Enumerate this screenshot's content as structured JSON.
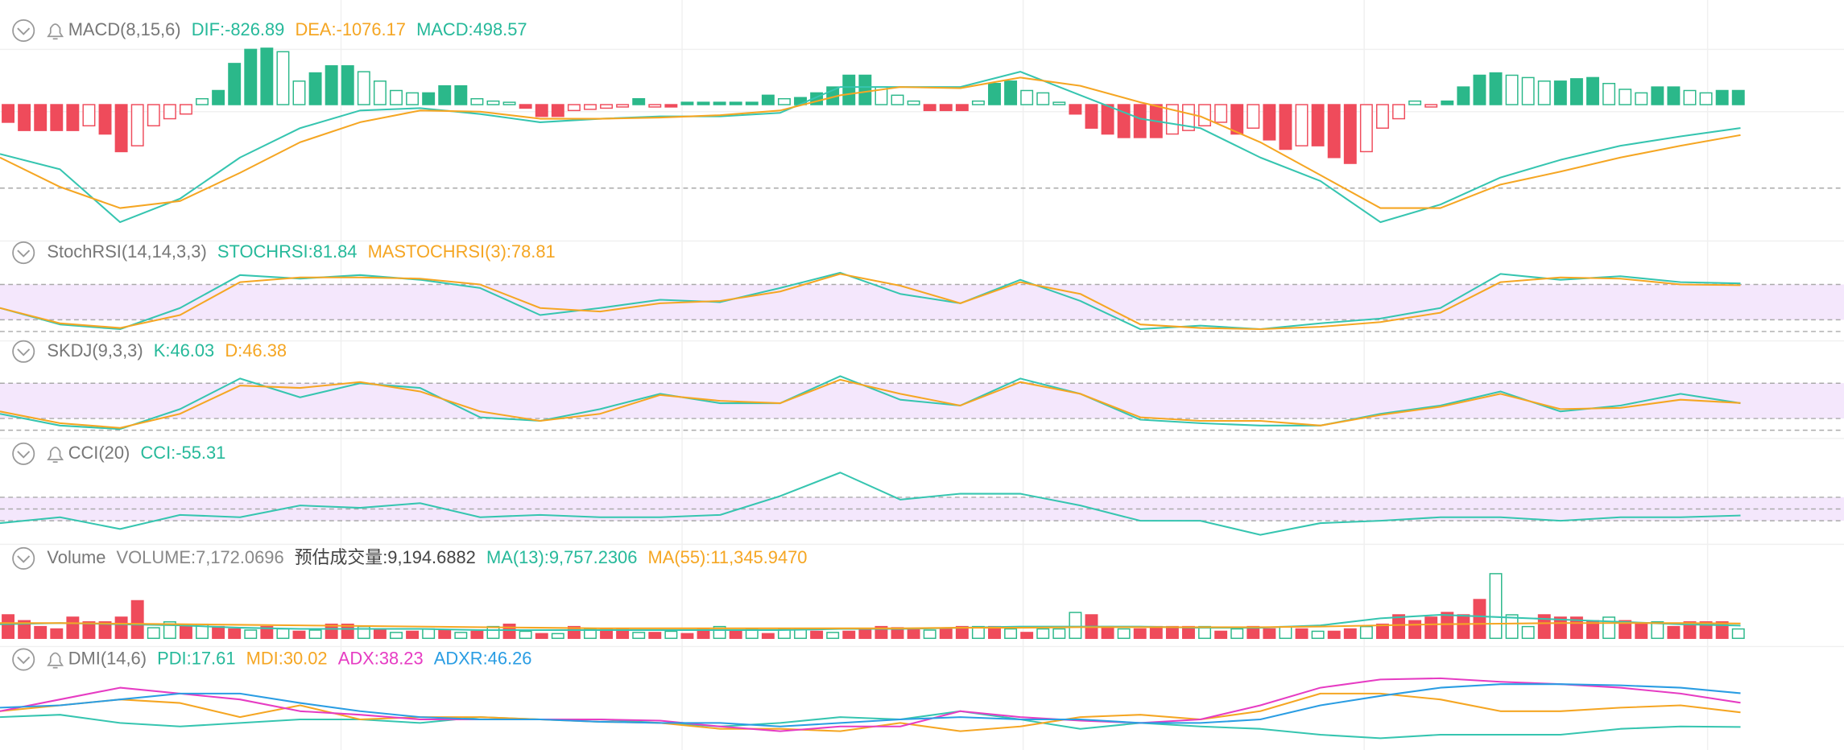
{
  "panels": [
    {
      "title": "MACD(8,15,6)",
      "bell": true,
      "ylim": [
        -4607,
        2034
      ],
      "levels": [
        -2947
      ],
      "legend": [
        {
          "text": "DIF:-826.89",
          "color": "#26b99a"
        },
        {
          "text": "DEA:-1076.17",
          "color": "#f5a623"
        },
        {
          "text": "MACD:498.57",
          "color": "#26b99a"
        }
      ],
      "histogram": {
        "up_color": "#2bb88a",
        "down_color": "#ef4b5b",
        "values": [
          -623,
          -913,
          -913,
          -913,
          -913,
          -747,
          -1038,
          -1660,
          -1453,
          -747,
          -498,
          -332,
          208,
          498,
          1453,
          1951,
          1992,
          1868,
          830,
          1121,
          1370,
          1370,
          1162,
          830,
          498,
          415,
          415,
          664,
          664,
          208,
          125,
          83,
          -125,
          -415,
          -415,
          -208,
          -166,
          -125,
          -83,
          208,
          -83,
          -83,
          83,
          83,
          83,
          83,
          83,
          332,
          208,
          249,
          415,
          623,
          1038,
          1038,
          623,
          332,
          125,
          -208,
          -208,
          -208,
          125,
          747,
          830,
          498,
          415,
          83,
          -332,
          -830,
          -1038,
          -1162,
          -1162,
          -1162,
          -1038,
          -913,
          -747,
          -623,
          -1038,
          -830,
          -1245,
          -1577,
          -1453,
          -1453,
          -1868,
          -2075,
          -1660,
          -830,
          -498,
          125,
          -83,
          125,
          623,
          1038,
          1121,
          1038,
          955,
          830,
          830,
          913,
          955,
          747,
          540,
          415,
          623,
          623,
          498,
          415,
          498,
          498.57
        ]
      },
      "series": [
        {
          "color": "#36c5b0",
          "values": [
            -1743,
            -2283,
            -4150,
            -3320,
            -1868,
            -830,
            -208,
            -125,
            -332,
            -623,
            -498,
            -415,
            -415,
            -291,
            623,
            623,
            623,
            1162,
            332,
            -498,
            -830,
            -1868,
            -2698,
            -4150,
            -3528,
            -2573,
            -1951,
            -1453,
            -1121,
            -826.89
          ]
        },
        {
          "color": "#f5a623",
          "values": [
            -1868,
            -2905,
            -3652,
            -3403,
            -2407,
            -1328,
            -623,
            -208,
            -249,
            -498,
            -498,
            -457,
            -374,
            -208,
            332,
            623,
            581,
            955,
            664,
            83,
            -415,
            -1328,
            -2490,
            -3652,
            -3652,
            -2822,
            -2366,
            -1868,
            -1453,
            -1076.17
          ]
        }
      ]
    },
    {
      "title": "StochRSI(14,14,3,3)",
      "bell": false,
      "ylim": [
        0,
        100
      ],
      "band": [
        20,
        80
      ],
      "levels": [
        0,
        20,
        80
      ],
      "legend": [
        {
          "text": "STOCHRSI:81.84",
          "color": "#26b99a"
        },
        {
          "text": "MASTOCHRSI(3):78.81",
          "color": "#f5a623"
        }
      ],
      "series": [
        {
          "color": "#36c5b0",
          "values": [
            40,
            12,
            4,
            40,
            96,
            90,
            96,
            88,
            74,
            28,
            40,
            54,
            50,
            74,
            100,
            64,
            48,
            88,
            52,
            4,
            10,
            4,
            14,
            22,
            40,
            98,
            88,
            94,
            84,
            81.84
          ]
        },
        {
          "color": "#f5a623",
          "values": [
            40,
            14,
            6,
            28,
            84,
            92,
            92,
            90,
            80,
            40,
            34,
            48,
            52,
            68,
            98,
            78,
            48,
            84,
            64,
            12,
            6,
            4,
            8,
            16,
            32,
            84,
            92,
            90,
            80,
            78.81
          ]
        }
      ]
    },
    {
      "title": "SKDJ(9,3,3)",
      "bell": false,
      "ylim": [
        0,
        100
      ],
      "band": [
        20,
        80
      ],
      "levels": [
        0,
        20,
        80
      ],
      "legend": [
        {
          "text": "K:46.03",
          "color": "#26b99a"
        },
        {
          "text": "D:46.38",
          "color": "#f5a623"
        }
      ],
      "series": [
        {
          "color": "#36c5b0",
          "values": [
            28,
            8,
            2,
            36,
            88,
            56,
            80,
            72,
            22,
            16,
            36,
            62,
            46,
            46,
            92,
            52,
            42,
            88,
            62,
            18,
            12,
            8,
            8,
            28,
            42,
            66,
            32,
            42,
            62,
            46.03
          ]
        },
        {
          "color": "#f5a623",
          "values": [
            32,
            12,
            4,
            28,
            76,
            72,
            82,
            66,
            32,
            16,
            28,
            60,
            50,
            46,
            86,
            62,
            42,
            82,
            62,
            22,
            16,
            16,
            8,
            26,
            40,
            62,
            36,
            38,
            52,
            46.38
          ]
        }
      ]
    },
    {
      "title": "CCI(20)",
      "bell": true,
      "ylim": [
        -270,
        330
      ],
      "band": [
        -100,
        100
      ],
      "levels": [
        -100,
        0,
        100
      ],
      "legend": [
        {
          "text": "CCI:-55.31",
          "color": "#26b99a"
        }
      ],
      "series": [
        {
          "color": "#36c5b0",
          "values": [
            -120,
            -70,
            -170,
            -50,
            -70,
            30,
            10,
            50,
            -70,
            -50,
            -70,
            -70,
            -50,
            110,
            310,
            80,
            130,
            130,
            30,
            -100,
            -100,
            -220,
            -120,
            -100,
            -70,
            -70,
            -100,
            -70,
            -70,
            -55.31
          ]
        }
      ]
    },
    {
      "title": "Volume",
      "bell": false,
      "ylim": [
        0,
        50400
      ],
      "legend": [
        {
          "text": "VOLUME:7,172.0696",
          "color": "#888888"
        },
        {
          "text": "预估成交量:9,194.6882",
          "color": "#444444"
        },
        {
          "text": "MA(13):9,757.2306",
          "color": "#26b99a"
        },
        {
          "text": "MA(55):11,345.9470",
          "color": "#f5a623"
        }
      ],
      "volume": {
        "up_color": "#2bb88a",
        "down_color": "#ef4b5b",
        "values": [
          18000,
          13500,
          9000,
          7200,
          16200,
          12600,
          12600,
          16200,
          28800,
          8100,
          12600,
          9000,
          10800,
          9000,
          7200,
          6300,
          9000,
          7200,
          5400,
          6300,
          10800,
          10800,
          9000,
          7200,
          4500,
          5400,
          7200,
          6300,
          4500,
          5400,
          9000,
          10800,
          5400,
          3600,
          3600,
          9000,
          7200,
          7200,
          7200,
          4500,
          4500,
          5400,
          3600,
          7200,
          9000,
          5400,
          7200,
          3600,
          7200,
          7200,
          5400,
          4500,
          5400,
          7200,
          9000,
          8100,
          7200,
          6300,
          7200,
          9000,
          9000,
          9000,
          7200,
          4500,
          7200,
          7200,
          19800,
          18000,
          9000,
          7200,
          7200,
          9000,
          9000,
          9000,
          9000,
          5400,
          7200,
          9000,
          7200,
          9000,
          7200,
          5400,
          5400,
          7200,
          9000,
          10800,
          18000,
          13500,
          16200,
          19800,
          18000,
          29700,
          49500,
          18000,
          9000,
          18000,
          16200,
          16200,
          13500,
          16200,
          13500,
          10800,
          12600,
          9000,
          12600,
          12600,
          12600,
          7172.0696
        ],
        "up": [
          0,
          0,
          0,
          0,
          0,
          0,
          0,
          0,
          0,
          1,
          1,
          0,
          1,
          0,
          0,
          1,
          0,
          1,
          0,
          1,
          0,
          0,
          1,
          0,
          1,
          0,
          1,
          0,
          1,
          0,
          1,
          0,
          1,
          0,
          1,
          0,
          1,
          0,
          0,
          1,
          0,
          1,
          0,
          0,
          1,
          0,
          1,
          0,
          1,
          1,
          0,
          1,
          0,
          0,
          0,
          0,
          0,
          1,
          0,
          0,
          1,
          0,
          1,
          0,
          1,
          1,
          1,
          0,
          0,
          1,
          0,
          0,
          0,
          0,
          1,
          0,
          1,
          0,
          0,
          1,
          0,
          1,
          0,
          0,
          1,
          0,
          0,
          0,
          0,
          0,
          0,
          0,
          1,
          1,
          1,
          0,
          0,
          0,
          0,
          1,
          0,
          0,
          1,
          0,
          0,
          0,
          0,
          1
        ]
      },
      "series": [
        {
          "color": "#36c5b0",
          "values": [
            10800,
            11700,
            10800,
            9900,
            8100,
            7200,
            7200,
            7200,
            6300,
            6300,
            6300,
            6300,
            6300,
            6300,
            7200,
            7200,
            8100,
            9000,
            9000,
            9000,
            8100,
            8100,
            9900,
            15300,
            18000,
            16200,
            14400,
            12600,
            10800,
            9757.2306
          ]
        },
        {
          "color": "#f5a623",
          "values": [
            11700,
            11700,
            11250,
            10800,
            10350,
            9900,
            9450,
            9000,
            8550,
            8100,
            7650,
            7650,
            7650,
            7650,
            7650,
            7650,
            8100,
            8100,
            8550,
            8550,
            8550,
            8550,
            9000,
            9900,
            10800,
            11250,
            11700,
            11700,
            11700,
            11345.947
          ]
        }
      ]
    },
    {
      "title": "DMI(14,6)",
      "bell": true,
      "ylim": [
        0,
        61
      ],
      "legend": [
        {
          "text": "PDI:17.61",
          "color": "#26b99a"
        },
        {
          "text": "MDI:30.02",
          "color": "#f5a623"
        },
        {
          "text": "ADX:38.23",
          "color": "#e63cc3"
        },
        {
          "text": "ADXR:46.26",
          "color": "#2a9de3"
        }
      ],
      "series": [
        {
          "color": "#36c5b0",
          "values": [
            26,
            28,
            21,
            18,
            21,
            24,
            24,
            21,
            26,
            24,
            24,
            21,
            18,
            21,
            26,
            24,
            31,
            24,
            16,
            21,
            18,
            16,
            11,
            8,
            11,
            11,
            11,
            16,
            18,
            17.61
          ]
        },
        {
          "color": "#f5a623",
          "values": [
            31,
            36,
            41,
            38,
            26,
            36,
            24,
            26,
            26,
            24,
            22,
            21,
            16,
            16,
            14,
            21,
            14,
            18,
            26,
            28,
            24,
            31,
            46,
            46,
            41,
            31,
            31,
            34,
            36,
            30.02
          ]
        },
        {
          "color": "#e63cc3",
          "values": [
            31,
            41,
            51,
            46,
            41,
            31,
            28,
            24,
            24,
            24,
            24,
            23,
            18,
            14,
            18,
            18,
            31,
            26,
            23,
            21,
            24,
            36,
            51,
            58,
            59,
            56,
            54,
            51,
            46,
            38.23
          ]
        },
        {
          "color": "#2a9de3",
          "values": [
            34,
            36,
            41,
            46,
            46,
            38,
            31,
            26,
            24,
            24,
            22,
            21,
            21,
            18,
            21,
            24,
            26,
            24,
            24,
            21,
            21,
            24,
            36,
            44,
            51,
            54,
            54,
            53,
            51,
            46.26
          ]
        }
      ]
    }
  ]
}
